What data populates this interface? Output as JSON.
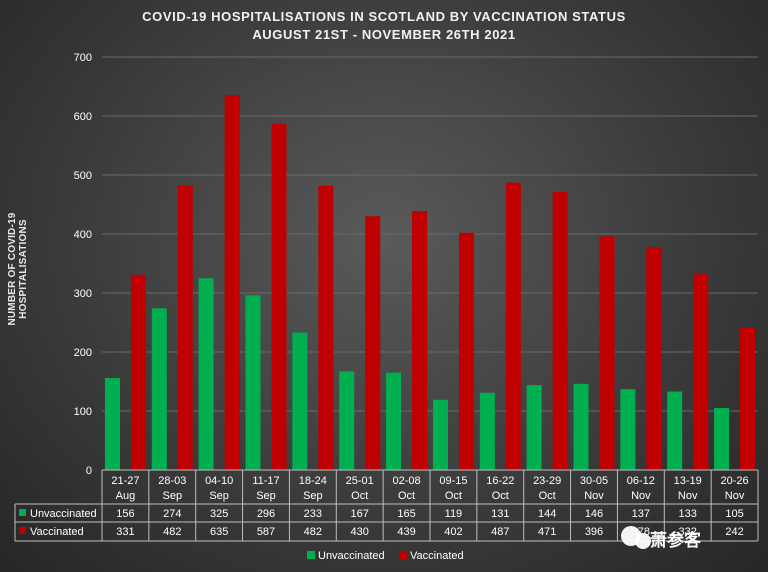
{
  "chart_data": {
    "type": "bar",
    "title": "COVID-19 HOSPITALISATIONS  IN SCOTLAND  BY VACCINATION  STATUS",
    "subtitle": "AUGUST  21ST - NOVEMBER  26TH 2021",
    "ylabel": "NUMBER OF COVID-19 HOSPITALISATIONS",
    "xlabel": "",
    "ylim": [
      0,
      700
    ],
    "yticks": [
      0,
      100,
      200,
      300,
      400,
      500,
      600,
      700
    ],
    "grid": true,
    "legend": "bottom",
    "categories": [
      [
        "21-27",
        "Aug"
      ],
      [
        "28-03",
        "Sep"
      ],
      [
        "04-10",
        "Sep"
      ],
      [
        "11-17",
        "Sep"
      ],
      [
        "18-24",
        "Sep"
      ],
      [
        "25-01",
        "Oct"
      ],
      [
        "02-08",
        "Oct"
      ],
      [
        "09-15",
        "Oct"
      ],
      [
        "16-22",
        "Oct"
      ],
      [
        "23-29",
        "Oct"
      ],
      [
        "30-05",
        "Nov"
      ],
      [
        "06-12",
        "Nov"
      ],
      [
        "13-19",
        "Nov"
      ],
      [
        "20-26",
        "Nov"
      ]
    ],
    "series": [
      {
        "name": "Unvaccinated",
        "color": "#00b050",
        "values": [
          156,
          274,
          325,
          296,
          233,
          167,
          165,
          119,
          131,
          144,
          146,
          137,
          133,
          105
        ]
      },
      {
        "name": "Vaccinated",
        "color": "#c00000",
        "values": [
          331,
          482,
          635,
          587,
          482,
          430,
          439,
          402,
          487,
          471,
          396,
          378,
          332,
          242
        ]
      }
    ],
    "data_table": true
  },
  "watermark": "萧参客"
}
